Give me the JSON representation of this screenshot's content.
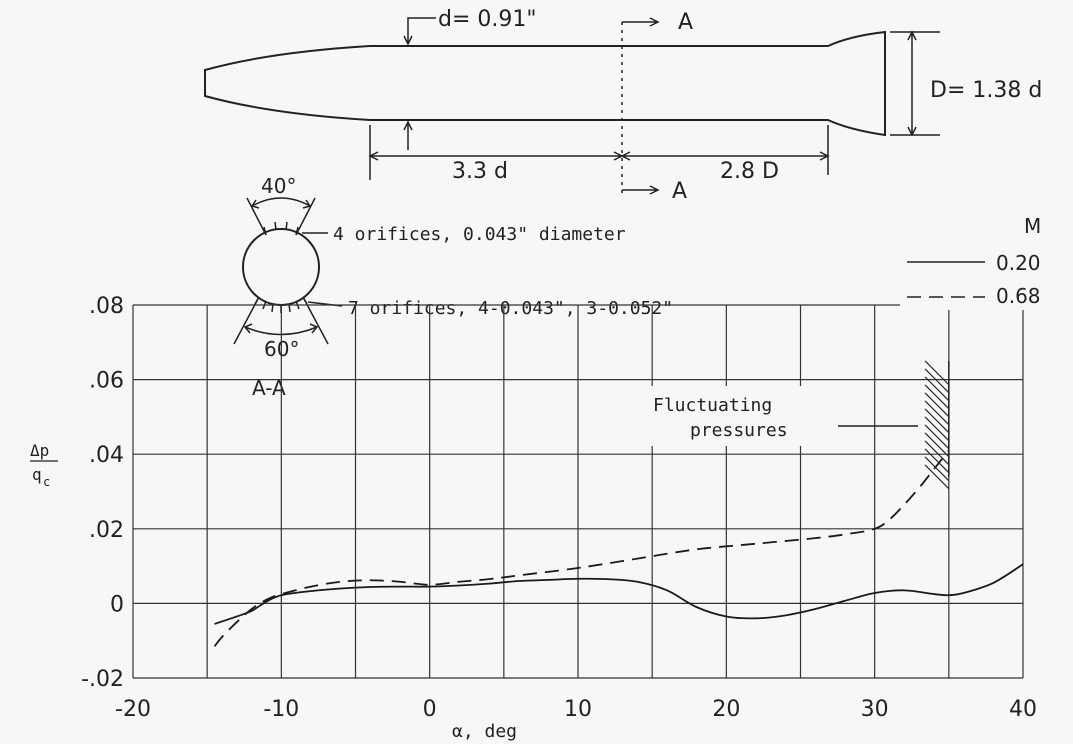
{
  "body_sketch": {
    "d_label": "d= 0.91\"",
    "D_label": "D= 1.38 d",
    "dim_left": "3.3 d",
    "dim_right": "2.8 D",
    "section_mark_top": "A",
    "section_mark_bottom": "A"
  },
  "section_view": {
    "top_angle": "40°",
    "bottom_angle": "60°",
    "top_orifices": "4 orifices, 0.043\" diameter",
    "bottom_orifices": "7 orifices, 4-0.043\", 3-0.052\"",
    "label": "A-A"
  },
  "annotation": {
    "line1": "Fluctuating",
    "line2": "pressures"
  },
  "chart_data": {
    "type": "line",
    "xlabel": "α, deg",
    "ylabel_num": "Δp",
    "ylabel_den": "q",
    "ylabel_sub": "c",
    "xlim": [
      -20,
      40
    ],
    "ylim": [
      -0.02,
      0.08
    ],
    "grid": true,
    "x_ticks": [
      -20,
      -10,
      0,
      10,
      20,
      30,
      40
    ],
    "x_tick_labels": [
      "-20",
      "-10",
      "0",
      "10",
      "20",
      "30",
      "40"
    ],
    "y_ticks": [
      -0.02,
      0,
      0.02,
      0.04,
      0.06,
      0.08
    ],
    "y_tick_labels": [
      "-.02",
      "0",
      ".02",
      ".04",
      ".06",
      ".08"
    ],
    "legend_title": "M",
    "legend_position": "top-right",
    "series": [
      {
        "name": "0.20",
        "style": "solid",
        "x": [
          -14.5,
          -13,
          -12,
          -11,
          -10,
          -8,
          -6,
          -4,
          -2,
          0,
          2,
          4,
          6,
          8,
          10,
          12,
          14,
          16,
          18,
          20,
          22,
          24,
          26,
          28,
          30,
          32,
          34,
          35,
          36,
          38,
          40
        ],
        "y": [
          -0.0055,
          -0.0035,
          -0.002,
          0.0005,
          0.0022,
          0.0033,
          0.004,
          0.0044,
          0.0045,
          0.0045,
          0.0048,
          0.0053,
          0.006,
          0.0063,
          0.0066,
          0.0065,
          0.0058,
          0.0035,
          -0.001,
          -0.0035,
          -0.004,
          -0.0032,
          -0.0015,
          0.0007,
          0.0028,
          0.0035,
          0.0025,
          0.0022,
          0.0028,
          0.0055,
          0.0105
        ]
      },
      {
        "name": "0.68",
        "style": "dashed",
        "x": [
          -14.5,
          -14,
          -13,
          -12,
          -11,
          -10,
          -8,
          -6,
          -4,
          -2,
          0,
          2,
          4,
          6,
          10,
          14,
          18,
          22,
          26,
          28,
          30,
          31,
          32,
          33,
          34,
          35
        ],
        "y": [
          -0.0115,
          -0.009,
          -0.005,
          -0.0015,
          0.001,
          0.0025,
          0.0045,
          0.0058,
          0.0062,
          0.0058,
          0.005,
          0.0058,
          0.0065,
          0.0075,
          0.0095,
          0.012,
          0.0145,
          0.016,
          0.0175,
          0.0185,
          0.02,
          0.0225,
          0.0265,
          0.031,
          0.036,
          0.041
        ]
      }
    ]
  }
}
